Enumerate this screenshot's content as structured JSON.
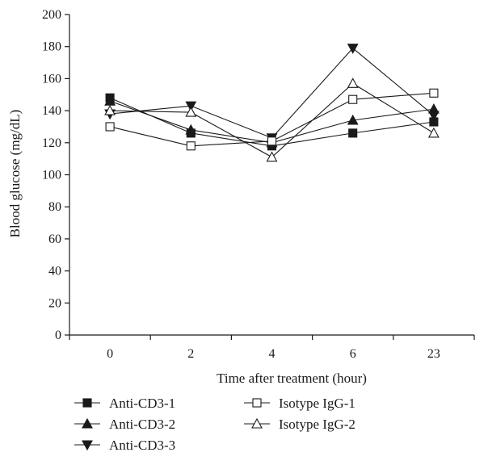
{
  "chart_data": {
    "type": "line",
    "categories": [
      "0",
      "2",
      "4",
      "6",
      "23"
    ],
    "xlabel": "Time after treatment (hour)",
    "ylabel": "Blood glucose (mg/dL)",
    "ylim": [
      0,
      200
    ],
    "yticks": [
      0,
      20,
      40,
      60,
      80,
      100,
      120,
      140,
      160,
      180,
      200
    ],
    "grid": false,
    "legend_position": "bottom",
    "series": [
      {
        "name": "Anti-CD3-1",
        "marker": "square-filled",
        "values": [
          148,
          126,
          118,
          126,
          133
        ]
      },
      {
        "name": "Anti-CD3-2",
        "marker": "triangle-up-filled",
        "values": [
          146,
          128,
          120,
          134,
          141
        ]
      },
      {
        "name": "Anti-CD3-3",
        "marker": "triangle-down-filled",
        "values": [
          138,
          143,
          123,
          179,
          137
        ]
      },
      {
        "name": "Isotype IgG-1",
        "marker": "square-open",
        "values": [
          130,
          118,
          121,
          147,
          151
        ]
      },
      {
        "name": "Isotype IgG-2",
        "marker": "triangle-up-open",
        "values": [
          140,
          139,
          111,
          157,
          126
        ]
      }
    ]
  }
}
